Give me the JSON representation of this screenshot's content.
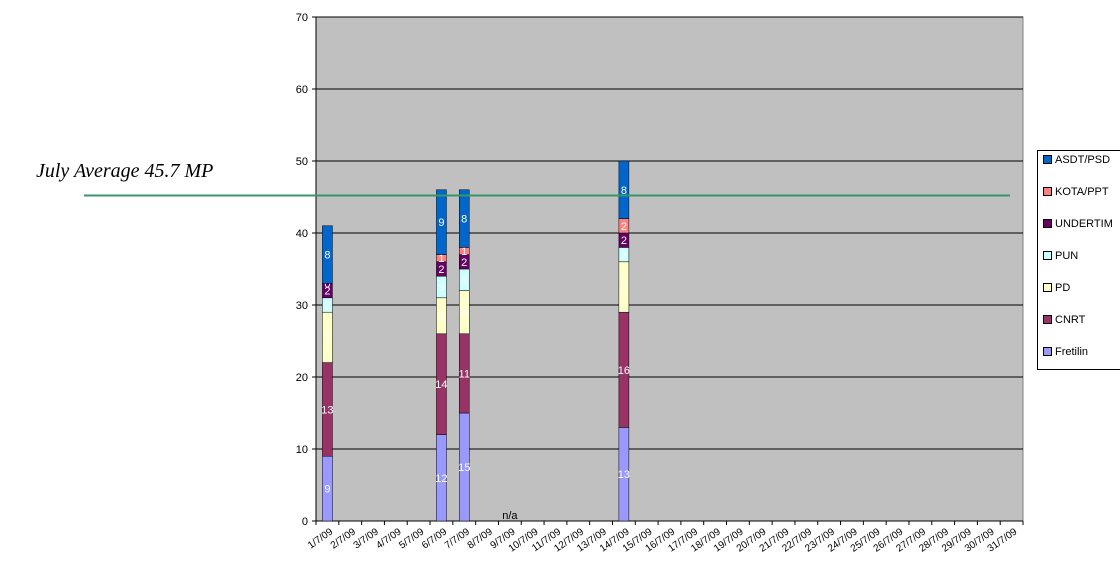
{
  "annotation": {
    "text": "July Average 45.7 MP"
  },
  "chart_data": {
    "type": "bar",
    "stacked": true,
    "title": "",
    "xlabel": "",
    "ylabel": "",
    "ylim": [
      0,
      70
    ],
    "yticks": [
      0,
      10,
      20,
      30,
      40,
      50,
      60,
      70
    ],
    "grid": true,
    "legend_position": "right",
    "plot_background": "#c0c0c0",
    "categories": [
      "1/7/09",
      "2/7/09",
      "3/7/09",
      "4/7/09",
      "5/7/09",
      "6/7/09",
      "7/7/09",
      "8/7/09",
      "9/7/09",
      "10/7/09",
      "11/7/09",
      "12/7/09",
      "13/7/09",
      "14/7/09",
      "15/7/09",
      "16/7/09",
      "17/7/09",
      "18/7/09",
      "19/7/09",
      "20/7/09",
      "21/7/09",
      "22/7/09",
      "23/7/09",
      "24/7/09",
      "25/7/09",
      "26/7/09",
      "27/7/09",
      "28/7/09",
      "29/7/09",
      "30/7/09",
      "31/7/09"
    ],
    "series": [
      {
        "name": "Fretilin",
        "color": "#9999ff",
        "values": [
          9,
          null,
          null,
          null,
          null,
          12,
          15,
          null,
          null,
          null,
          null,
          null,
          null,
          13,
          null,
          null,
          null,
          null,
          null,
          null,
          null,
          null,
          null,
          null,
          null,
          null,
          null,
          null,
          null,
          null,
          null
        ]
      },
      {
        "name": "CNRT",
        "color": "#993366",
        "values": [
          13,
          null,
          null,
          null,
          null,
          14,
          11,
          null,
          null,
          null,
          null,
          null,
          null,
          16,
          null,
          null,
          null,
          null,
          null,
          null,
          null,
          null,
          null,
          null,
          null,
          null,
          null,
          null,
          null,
          null,
          null
        ]
      },
      {
        "name": "PD",
        "color": "#ffffcc",
        "values": [
          7,
          null,
          null,
          null,
          null,
          5,
          6,
          null,
          null,
          null,
          null,
          null,
          null,
          7,
          null,
          null,
          null,
          null,
          null,
          null,
          null,
          null,
          null,
          null,
          null,
          null,
          null,
          null,
          null,
          null,
          null
        ]
      },
      {
        "name": "PUN",
        "color": "#ccffff",
        "values": [
          2,
          null,
          null,
          null,
          null,
          3,
          3,
          null,
          null,
          null,
          null,
          null,
          null,
          2,
          null,
          null,
          null,
          null,
          null,
          null,
          null,
          null,
          null,
          null,
          null,
          null,
          null,
          null,
          null,
          null,
          null
        ]
      },
      {
        "name": "UNDERTIM",
        "color": "#660066",
        "values": [
          2,
          null,
          null,
          null,
          null,
          2,
          2,
          null,
          null,
          null,
          null,
          null,
          null,
          2,
          null,
          null,
          null,
          null,
          null,
          null,
          null,
          null,
          null,
          null,
          null,
          null,
          null,
          null,
          null,
          null,
          null
        ]
      },
      {
        "name": "KOTA/PPT",
        "color": "#ff8080",
        "values": [
          0,
          null,
          null,
          null,
          null,
          1,
          1,
          null,
          null,
          null,
          null,
          null,
          null,
          2,
          null,
          null,
          null,
          null,
          null,
          null,
          null,
          null,
          null,
          null,
          null,
          null,
          null,
          null,
          null,
          null,
          null
        ]
      },
      {
        "name": "ASDT/PSD",
        "color": "#0066cc",
        "values": [
          8,
          null,
          null,
          null,
          null,
          9,
          8,
          null,
          null,
          null,
          null,
          null,
          null,
          8,
          null,
          null,
          null,
          null,
          null,
          null,
          null,
          null,
          null,
          null,
          null,
          null,
          null,
          null,
          null,
          null,
          null
        ]
      }
    ],
    "reference_line": {
      "value": 45.2,
      "color": "#339966"
    },
    "annotations": [
      {
        "text": "n/a",
        "category": "9/7/09"
      }
    ]
  }
}
